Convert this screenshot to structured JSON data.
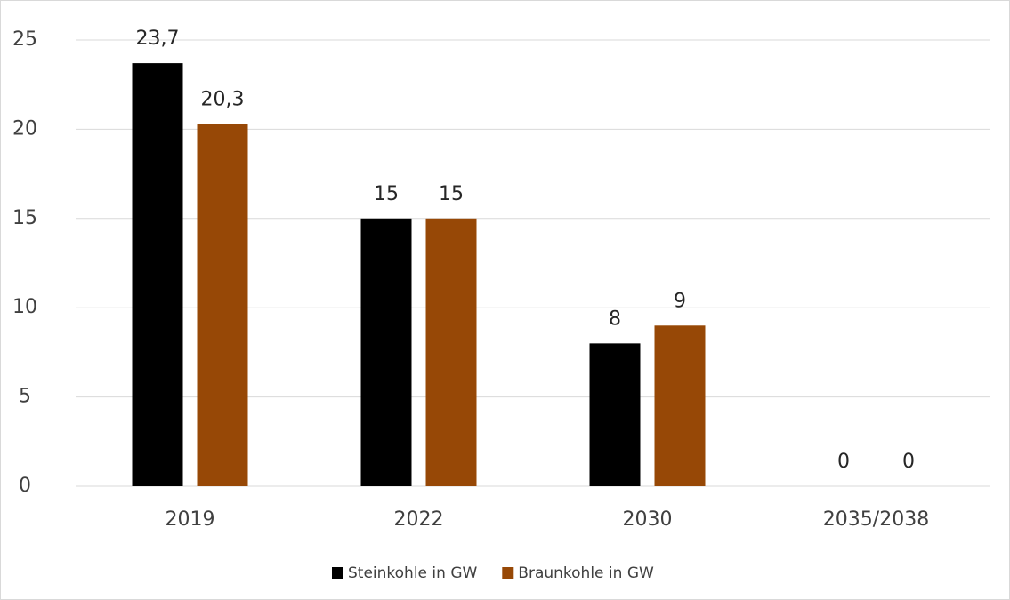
{
  "chart_data": {
    "type": "bar",
    "categories": [
      "2019",
      "2022",
      "2030",
      "2035/2038"
    ],
    "series": [
      {
        "name": "Steinkohle in GW",
        "color": "#000000",
        "values": [
          23.7,
          15,
          8,
          0
        ],
        "value_labels": [
          "23,7",
          "15",
          "8",
          "0"
        ]
      },
      {
        "name": "Braunkohle in GW",
        "color": "#974806",
        "values": [
          20.3,
          15,
          9,
          0
        ],
        "value_labels": [
          "20,3",
          "15",
          "9",
          "0"
        ]
      }
    ],
    "ylim": [
      0,
      25
    ],
    "yticks": [
      0,
      5,
      10,
      15,
      20,
      25
    ],
    "grid": true,
    "legend": "bottom"
  }
}
